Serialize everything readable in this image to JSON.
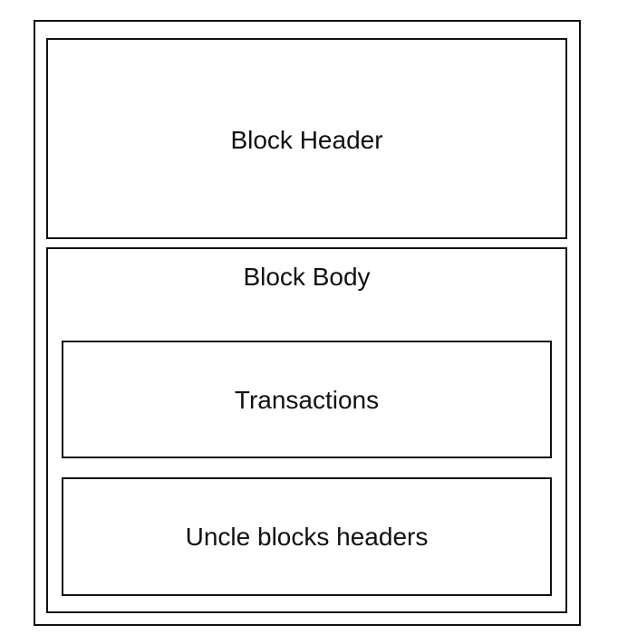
{
  "diagram": {
    "block_header": {
      "label": "Block Header"
    },
    "block_body": {
      "label": "Block Body",
      "transactions": {
        "label": "Transactions"
      },
      "uncle_headers": {
        "label": "Uncle blocks headers"
      }
    }
  }
}
